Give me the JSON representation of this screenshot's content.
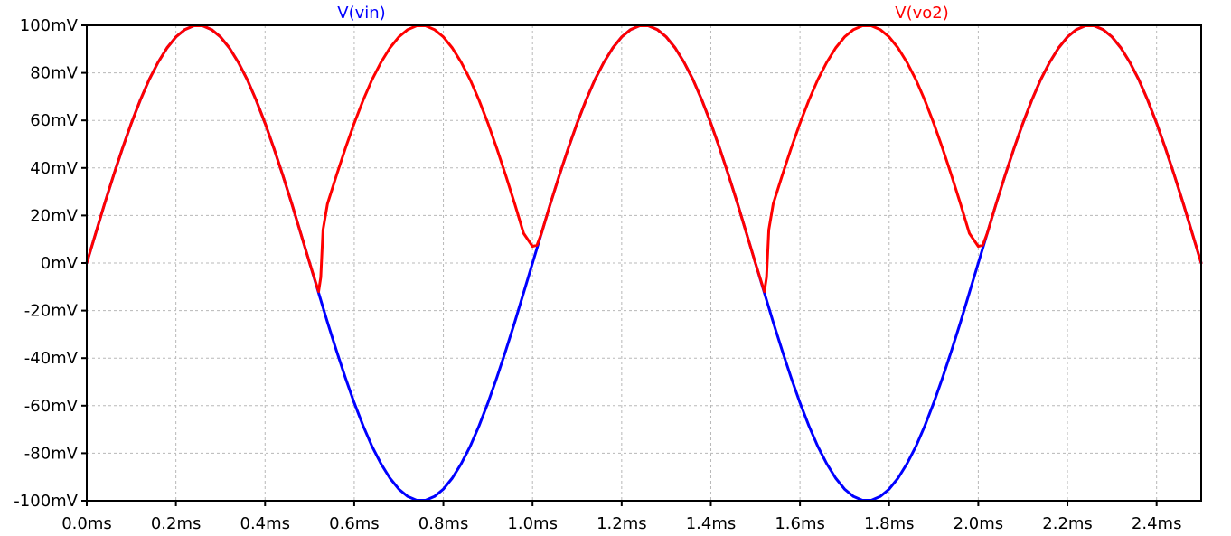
{
  "chart_data": {
    "type": "line",
    "title": "",
    "xlabel": "",
    "ylabel": "",
    "xlim": [
      0,
      2.5
    ],
    "ylim": [
      -100,
      100
    ],
    "x_unit": "ms",
    "y_unit": "mV",
    "grid": true,
    "x_ticks": [
      {
        "value": 0.0,
        "label": "0.0ms"
      },
      {
        "value": 0.2,
        "label": "0.2ms"
      },
      {
        "value": 0.4,
        "label": "0.4ms"
      },
      {
        "value": 0.6,
        "label": "0.6ms"
      },
      {
        "value": 0.8,
        "label": "0.8ms"
      },
      {
        "value": 1.0,
        "label": "1.0ms"
      },
      {
        "value": 1.2,
        "label": "1.2ms"
      },
      {
        "value": 1.4,
        "label": "1.4ms"
      },
      {
        "value": 1.6,
        "label": "1.6ms"
      },
      {
        "value": 1.8,
        "label": "1.8ms"
      },
      {
        "value": 2.0,
        "label": "2.0ms"
      },
      {
        "value": 2.2,
        "label": "2.2ms"
      },
      {
        "value": 2.4,
        "label": "2.4ms"
      }
    ],
    "y_ticks": [
      {
        "value": 100,
        "label": "100mV"
      },
      {
        "value": 80,
        "label": "80mV"
      },
      {
        "value": 60,
        "label": "60mV"
      },
      {
        "value": 40,
        "label": "40mV"
      },
      {
        "value": 20,
        "label": "20mV"
      },
      {
        "value": 0,
        "label": "0mV"
      },
      {
        "value": -20,
        "label": "-20mV"
      },
      {
        "value": -40,
        "label": "-40mV"
      },
      {
        "value": -60,
        "label": "-60mV"
      },
      {
        "value": -80,
        "label": "-80mV"
      },
      {
        "value": -100,
        "label": "-100mV"
      }
    ],
    "series": [
      {
        "name": "V(vin)",
        "color": "#0000ff",
        "x": [
          0.0,
          0.02,
          0.04,
          0.06,
          0.08,
          0.1,
          0.12,
          0.14,
          0.16,
          0.18,
          0.2,
          0.22,
          0.24,
          0.26,
          0.28,
          0.3,
          0.32,
          0.34,
          0.36,
          0.38,
          0.4,
          0.42,
          0.44,
          0.46,
          0.48,
          0.5,
          0.52,
          0.54,
          0.56,
          0.58,
          0.6,
          0.62,
          0.64,
          0.66,
          0.68,
          0.7,
          0.72,
          0.74,
          0.76,
          0.78,
          0.8,
          0.82,
          0.84,
          0.86,
          0.88,
          0.9,
          0.92,
          0.94,
          0.96,
          0.98,
          1.0,
          1.02,
          1.04,
          1.06,
          1.08,
          1.1,
          1.12,
          1.14,
          1.16,
          1.18,
          1.2,
          1.22,
          1.24,
          1.26,
          1.28,
          1.3,
          1.32,
          1.34,
          1.36,
          1.38,
          1.4,
          1.42,
          1.44,
          1.46,
          1.48,
          1.5,
          1.52,
          1.54,
          1.56,
          1.58,
          1.6,
          1.62,
          1.64,
          1.66,
          1.68,
          1.7,
          1.72,
          1.74,
          1.76,
          1.78,
          1.8,
          1.82,
          1.84,
          1.86,
          1.88,
          1.9,
          1.92,
          1.94,
          1.96,
          1.98,
          2.0,
          2.02,
          2.04,
          2.06,
          2.08,
          2.1,
          2.12,
          2.14,
          2.16,
          2.18,
          2.2,
          2.22,
          2.24,
          2.26,
          2.28,
          2.3,
          2.32,
          2.34,
          2.36,
          2.38,
          2.4,
          2.42,
          2.44,
          2.46,
          2.48,
          2.5
        ],
        "y": [
          0.0,
          12.5,
          24.9,
          36.8,
          48.2,
          58.8,
          68.5,
          77.1,
          84.4,
          90.5,
          95.1,
          98.2,
          99.8,
          99.8,
          98.2,
          95.1,
          90.5,
          84.4,
          77.1,
          68.5,
          58.8,
          48.2,
          36.8,
          24.9,
          12.5,
          0.0,
          -12.5,
          -24.9,
          -36.8,
          -48.2,
          -58.8,
          -68.5,
          -77.1,
          -84.4,
          -90.5,
          -95.1,
          -98.2,
          -99.8,
          -99.8,
          -98.2,
          -95.1,
          -90.5,
          -84.4,
          -77.1,
          -68.5,
          -58.8,
          -48.2,
          -36.8,
          -24.9,
          -12.5,
          0.0,
          12.5,
          24.9,
          36.8,
          48.2,
          58.8,
          68.5,
          77.1,
          84.4,
          90.5,
          95.1,
          98.2,
          99.8,
          99.8,
          98.2,
          95.1,
          90.5,
          84.4,
          77.1,
          68.5,
          58.8,
          48.2,
          36.8,
          24.9,
          12.5,
          0.0,
          -12.5,
          -24.9,
          -36.8,
          -48.2,
          -58.8,
          -68.5,
          -77.1,
          -84.4,
          -90.5,
          -95.1,
          -98.2,
          -99.8,
          -99.8,
          -98.2,
          -95.1,
          -90.5,
          -84.4,
          -77.1,
          -68.5,
          -58.8,
          -48.2,
          -36.8,
          -24.9,
          -12.5,
          0.0,
          12.5,
          24.9,
          36.8,
          48.2,
          58.8,
          68.5,
          77.1,
          84.4,
          90.5,
          95.1,
          98.2,
          99.8,
          99.8,
          98.2,
          95.1,
          90.5,
          84.4,
          77.1,
          68.5,
          58.8,
          48.2,
          36.8,
          24.9,
          12.5,
          0.0
        ]
      },
      {
        "name": "V(vo2)",
        "color": "#ff0000",
        "x": [
          0.0,
          0.02,
          0.04,
          0.06,
          0.08,
          0.1,
          0.12,
          0.14,
          0.16,
          0.18,
          0.2,
          0.22,
          0.24,
          0.26,
          0.28,
          0.3,
          0.32,
          0.34,
          0.36,
          0.38,
          0.4,
          0.42,
          0.44,
          0.46,
          0.48,
          0.5,
          0.52,
          0.525,
          0.53,
          0.54,
          0.56,
          0.58,
          0.6,
          0.62,
          0.64,
          0.66,
          0.68,
          0.7,
          0.72,
          0.74,
          0.76,
          0.78,
          0.8,
          0.82,
          0.84,
          0.86,
          0.88,
          0.9,
          0.92,
          0.94,
          0.96,
          0.98,
          1.0,
          1.01,
          1.02,
          1.04,
          1.06,
          1.08,
          1.1,
          1.12,
          1.14,
          1.16,
          1.18,
          1.2,
          1.22,
          1.24,
          1.26,
          1.28,
          1.3,
          1.32,
          1.34,
          1.36,
          1.38,
          1.4,
          1.42,
          1.44,
          1.46,
          1.48,
          1.5,
          1.52,
          1.525,
          1.53,
          1.54,
          1.56,
          1.58,
          1.6,
          1.62,
          1.64,
          1.66,
          1.68,
          1.7,
          1.72,
          1.74,
          1.76,
          1.78,
          1.8,
          1.82,
          1.84,
          1.86,
          1.88,
          1.9,
          1.92,
          1.94,
          1.96,
          1.98,
          2.0,
          2.01,
          2.02,
          2.04,
          2.06,
          2.08,
          2.1,
          2.12,
          2.14,
          2.16,
          2.18,
          2.2,
          2.22,
          2.24,
          2.26,
          2.28,
          2.3,
          2.32,
          2.34,
          2.36,
          2.38,
          2.4,
          2.42,
          2.44,
          2.46,
          2.48,
          2.5
        ],
        "y": [
          0.0,
          12.5,
          24.9,
          36.8,
          48.2,
          58.8,
          68.5,
          77.1,
          84.4,
          90.5,
          95.1,
          98.2,
          99.8,
          99.8,
          98.2,
          95.1,
          90.5,
          84.4,
          77.1,
          68.5,
          58.8,
          48.2,
          36.8,
          24.9,
          12.5,
          0.0,
          -12.0,
          -6.0,
          14.0,
          24.9,
          36.8,
          48.2,
          58.8,
          68.5,
          77.1,
          84.4,
          90.5,
          95.1,
          98.2,
          99.8,
          99.8,
          98.2,
          95.1,
          90.5,
          84.4,
          77.1,
          68.5,
          58.8,
          48.2,
          36.8,
          24.9,
          12.5,
          7.0,
          7.5,
          12.5,
          24.9,
          36.8,
          48.2,
          58.8,
          68.5,
          77.1,
          84.4,
          90.5,
          95.1,
          98.2,
          99.8,
          99.8,
          98.2,
          95.1,
          90.5,
          84.4,
          77.1,
          68.5,
          58.8,
          48.2,
          36.8,
          24.9,
          12.5,
          0.0,
          -12.0,
          -6.0,
          14.0,
          24.9,
          36.8,
          48.2,
          58.8,
          68.5,
          77.1,
          84.4,
          90.5,
          95.1,
          98.2,
          99.8,
          99.8,
          98.2,
          95.1,
          90.5,
          84.4,
          77.1,
          68.5,
          58.8,
          48.2,
          36.8,
          24.9,
          12.5,
          7.0,
          7.5,
          12.5,
          24.9,
          36.8,
          48.2,
          58.8,
          68.5,
          77.1,
          84.4,
          90.5,
          95.1,
          98.2,
          99.8,
          99.8,
          98.2,
          95.1,
          90.5,
          84.4,
          77.1,
          68.5,
          58.8,
          48.2,
          36.8,
          24.9,
          12.5,
          0.0
        ]
      }
    ]
  }
}
